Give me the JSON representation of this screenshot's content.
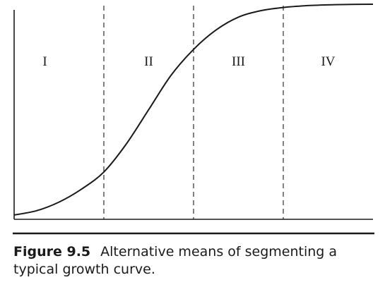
{
  "chart_data": {
    "type": "line",
    "title": "",
    "xlabel": "",
    "ylabel": "",
    "xlim": [
      0,
      4
    ],
    "ylim": [
      0,
      1
    ],
    "grid": false,
    "segment_boundaries": [
      1,
      2,
      3
    ],
    "segments": [
      {
        "label": "I",
        "x_range": [
          0,
          1
        ]
      },
      {
        "label": "II",
        "x_range": [
          1,
          2
        ]
      },
      {
        "label": "III",
        "x_range": [
          2,
          3
        ]
      },
      {
        "label": "IV",
        "x_range": [
          3,
          4
        ]
      }
    ],
    "series": [
      {
        "x": [
          0,
          0.25,
          0.5,
          0.75,
          1.0,
          1.25,
          1.5,
          1.75,
          2.0,
          2.25,
          2.5,
          2.75,
          3.0,
          3.25,
          3.5,
          3.75,
          4.0
        ],
        "y": [
          0.02,
          0.04,
          0.08,
          0.14,
          0.22,
          0.35,
          0.51,
          0.67,
          0.79,
          0.88,
          0.94,
          0.97,
          0.985,
          0.993,
          0.997,
          0.999,
          1.0
        ]
      }
    ]
  },
  "caption": {
    "number": "Figure 9.5",
    "text": "Alternative means of segmenting a typical growth curve."
  }
}
